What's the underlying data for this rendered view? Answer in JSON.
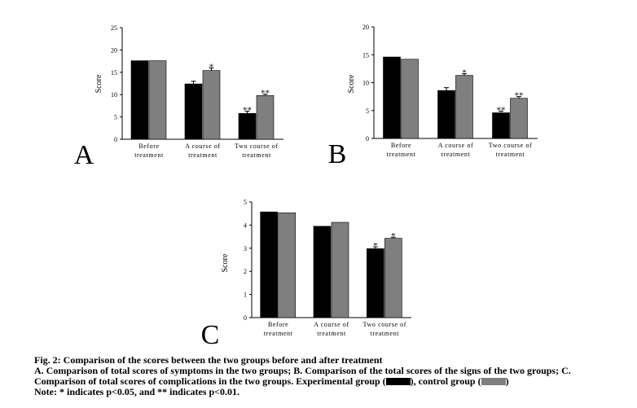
{
  "colors": {
    "experimental": "#000000",
    "control": "#7f7f7f",
    "axis": "#000000"
  },
  "chart_data": [
    {
      "panel": "A",
      "type": "bar",
      "ylabel": "Score",
      "ylim": [
        0,
        25
      ],
      "yticks": [
        0,
        5,
        10,
        15,
        20,
        25
      ],
      "categories": [
        [
          "Before",
          "treatment"
        ],
        [
          "A course of",
          "treatment"
        ],
        [
          "Two course of",
          "treatment"
        ]
      ],
      "series": [
        {
          "values": [
            17.6,
            12.4,
            5.8
          ],
          "errors": [
            0,
            0.6,
            0.5
          ],
          "marks": [
            "",
            "",
            "**"
          ]
        },
        {
          "values": [
            17.6,
            15.4,
            9.8
          ],
          "errors": [
            0,
            0.6,
            0.3
          ],
          "marks": [
            "",
            "*",
            "**"
          ]
        }
      ]
    },
    {
      "panel": "B",
      "type": "bar",
      "ylabel": "Score",
      "ylim": [
        0,
        20
      ],
      "yticks": [
        0,
        5,
        10,
        15,
        20
      ],
      "categories": [
        [
          "Before",
          "treatment"
        ],
        [
          "A course of",
          "treatment"
        ],
        [
          "Two course of",
          "treatment"
        ]
      ],
      "series": [
        {
          "values": [
            14.6,
            8.6,
            4.6
          ],
          "errors": [
            0,
            0.5,
            0.3
          ],
          "marks": [
            "",
            "",
            "**"
          ]
        },
        {
          "values": [
            14.2,
            11.3,
            7.2
          ],
          "errors": [
            0,
            0.3,
            0.3
          ],
          "marks": [
            "",
            "*",
            "**"
          ]
        }
      ]
    },
    {
      "panel": "C",
      "type": "bar",
      "ylabel": "Score",
      "ylim": [
        0,
        5
      ],
      "yticks": [
        0,
        1,
        2,
        3,
        4,
        5
      ],
      "categories": [
        [
          "Before",
          "treatment"
        ],
        [
          "A course of",
          "treatment"
        ],
        [
          "Two course of",
          "treatment"
        ]
      ],
      "series": [
        {
          "values": [
            4.57,
            3.95,
            2.98
          ],
          "errors": [
            0,
            0,
            0.08
          ],
          "marks": [
            "",
            "",
            "*"
          ]
        },
        {
          "values": [
            4.53,
            4.12,
            3.43
          ],
          "errors": [
            0,
            0,
            0.05
          ],
          "marks": [
            "",
            "",
            "*"
          ]
        }
      ]
    }
  ],
  "caption": {
    "title": "Fig. 2: Comparison of the scores between the two groups before and after treatment",
    "line1": "A. Comparison of total scores of symptoms in the two groups; B. Comparison of the total scores of the signs of the two groups; C.",
    "line2_a": "Comparison of total scores of complications in the two groups. Experimental group (",
    "line2_b": "), control group (",
    "line2_c": ")",
    "note": "Note: * indicates p<0.05, and ** indicates p<0.01."
  }
}
